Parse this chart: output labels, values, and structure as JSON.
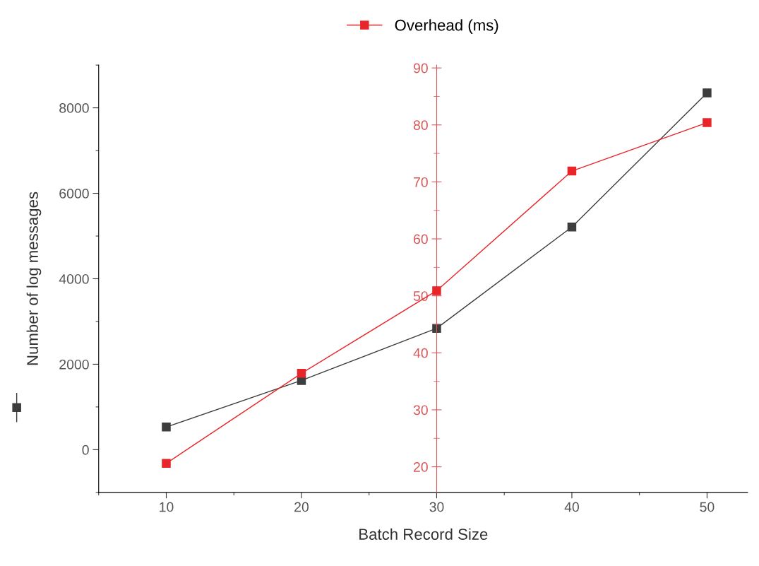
{
  "chart_data": {
    "type": "line",
    "xlabel": "Batch Record Size",
    "ylabel": "Number of log messages",
    "legend": "top",
    "marker": "square",
    "x": [
      10,
      20,
      30,
      40,
      50
    ],
    "xlim": [
      5,
      53
    ],
    "xticks": [
      10,
      20,
      30,
      40,
      50
    ],
    "ylim": [
      -1000,
      9000
    ],
    "yticks": [
      0,
      2000,
      4000,
      6000,
      8000
    ],
    "y2lim": [
      15.5,
      90.5
    ],
    "y2ticks": [
      20,
      30,
      40,
      50,
      60,
      70,
      80,
      90
    ],
    "series": [
      {
        "color": "#3d3d3d",
        "values": [
          530,
          1620,
          2840,
          5210,
          8350
        ]
      },
      {
        "name": "Overhead (ms)",
        "color": "#e8262a",
        "axis": "y2",
        "values": [
          20.6,
          36.4,
          50.9,
          71.9,
          80.4
        ]
      }
    ]
  }
}
